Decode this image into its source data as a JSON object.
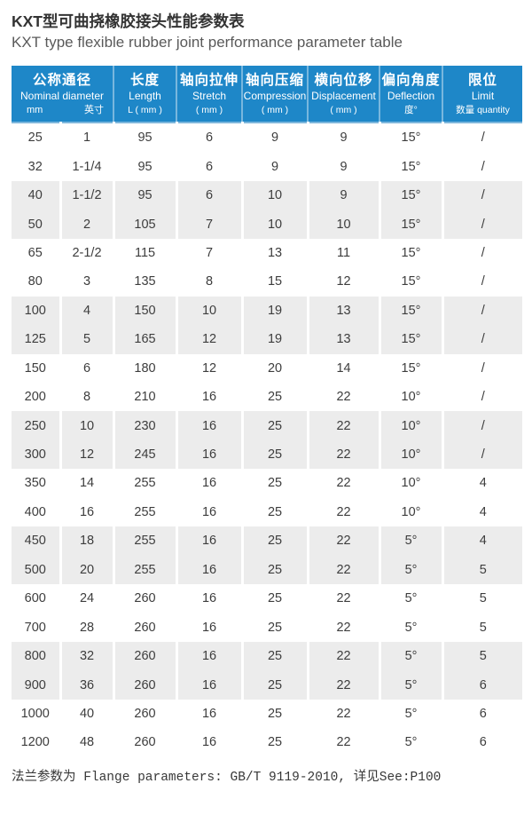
{
  "page": {
    "title_zh": "KXT型可曲挠橡胶接头性能参数表",
    "title_en": "KXT type flexible rubber joint performance parameter table"
  },
  "table": {
    "columns": [
      {
        "key": "nominal-diameter",
        "zh": "公称通径",
        "en": "Nominal diameter",
        "sub": [
          "mm",
          "英寸"
        ],
        "span": 2
      },
      {
        "key": "length",
        "zh": "长度",
        "en": "Length",
        "sub": "L ( mm )"
      },
      {
        "key": "stretch",
        "zh": "轴向拉伸",
        "en": "Stretch",
        "sub": "( mm )"
      },
      {
        "key": "compression",
        "zh": "轴向压缩",
        "en": "Compression",
        "sub": "( mm )"
      },
      {
        "key": "displacement",
        "zh": "横向位移",
        "en": "Displacement",
        "sub": "( mm )"
      },
      {
        "key": "deflection",
        "zh": "偏向角度",
        "en": "Deflection",
        "sub": "度°"
      },
      {
        "key": "limit",
        "zh": "限位",
        "en": "Limit",
        "sub": "数量 quantity"
      }
    ],
    "rows": [
      [
        "25",
        "1",
        "95",
        "6",
        "9",
        "9",
        "15°",
        "/"
      ],
      [
        "32",
        "1-1/4",
        "95",
        "6",
        "9",
        "9",
        "15°",
        "/"
      ],
      [
        "40",
        "1-1/2",
        "95",
        "6",
        "10",
        "9",
        "15°",
        "/"
      ],
      [
        "50",
        "2",
        "105",
        "7",
        "10",
        "10",
        "15°",
        "/"
      ],
      [
        "65",
        "2-1/2",
        "115",
        "7",
        "13",
        "11",
        "15°",
        "/"
      ],
      [
        "80",
        "3",
        "135",
        "8",
        "15",
        "12",
        "15°",
        "/"
      ],
      [
        "100",
        "4",
        "150",
        "10",
        "19",
        "13",
        "15°",
        "/"
      ],
      [
        "125",
        "5",
        "165",
        "12",
        "19",
        "13",
        "15°",
        "/"
      ],
      [
        "150",
        "6",
        "180",
        "12",
        "20",
        "14",
        "15°",
        "/"
      ],
      [
        "200",
        "8",
        "210",
        "16",
        "25",
        "22",
        "10°",
        "/"
      ],
      [
        "250",
        "10",
        "230",
        "16",
        "25",
        "22",
        "10°",
        "/"
      ],
      [
        "300",
        "12",
        "245",
        "16",
        "25",
        "22",
        "10°",
        "/"
      ],
      [
        "350",
        "14",
        "255",
        "16",
        "25",
        "22",
        "10°",
        "4"
      ],
      [
        "400",
        "16",
        "255",
        "16",
        "25",
        "22",
        "10°",
        "4"
      ],
      [
        "450",
        "18",
        "255",
        "16",
        "25",
        "22",
        "5°",
        "4"
      ],
      [
        "500",
        "20",
        "255",
        "16",
        "25",
        "22",
        "5°",
        "5"
      ],
      [
        "600",
        "24",
        "260",
        "16",
        "25",
        "22",
        "5°",
        "5"
      ],
      [
        "700",
        "28",
        "260",
        "16",
        "25",
        "22",
        "5°",
        "5"
      ],
      [
        "800",
        "32",
        "260",
        "16",
        "25",
        "22",
        "5°",
        "5"
      ],
      [
        "900",
        "36",
        "260",
        "16",
        "25",
        "22",
        "5°",
        "6"
      ],
      [
        "1000",
        "40",
        "260",
        "16",
        "25",
        "22",
        "5°",
        "6"
      ],
      [
        "1200",
        "48",
        "260",
        "16",
        "25",
        "22",
        "5°",
        "6"
      ]
    ],
    "footnote": "法兰参数为 Flange parameters: GB/T 9119-2010, 详见See:P100"
  },
  "colors": {
    "header_bg": "#1e87c8",
    "header_divider": "rgba(255,255,255,.4)",
    "header_underline": "#7db7dc",
    "row_shade": "#ececec",
    "body_text": "#3d3d3d",
    "title_text": "#333333",
    "subtitle_text": "#5a5a5a"
  }
}
